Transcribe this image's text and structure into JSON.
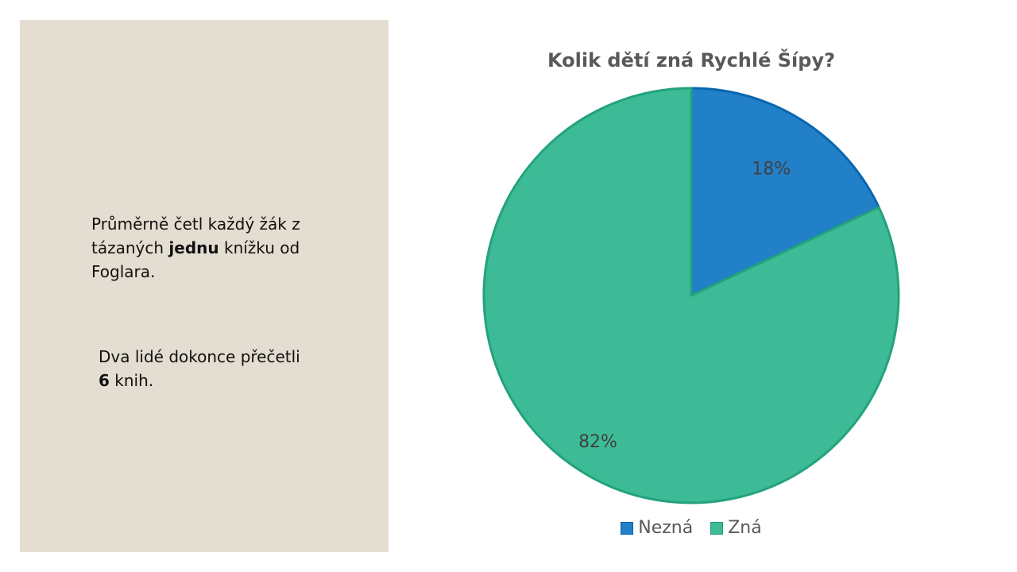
{
  "panel": {
    "text1": {
      "part1": "Průměrně četl každý žák z tázaných ",
      "bold": "jednu",
      "part2": " knížku od Foglara."
    },
    "text2": {
      "part1": "Dva lidé dokonce přečetli ",
      "bold": "6",
      "part2": " knih."
    }
  },
  "chart_data": {
    "type": "pie",
    "title": "Kolik dětí zná Rychlé Šípy?",
    "categories": [
      "Nezná",
      "Zná"
    ],
    "values": [
      18,
      82
    ],
    "data_labels": [
      "18%",
      "82%"
    ],
    "colors": [
      "#2280c8",
      "#3dbb96"
    ],
    "legend": "bottom"
  }
}
